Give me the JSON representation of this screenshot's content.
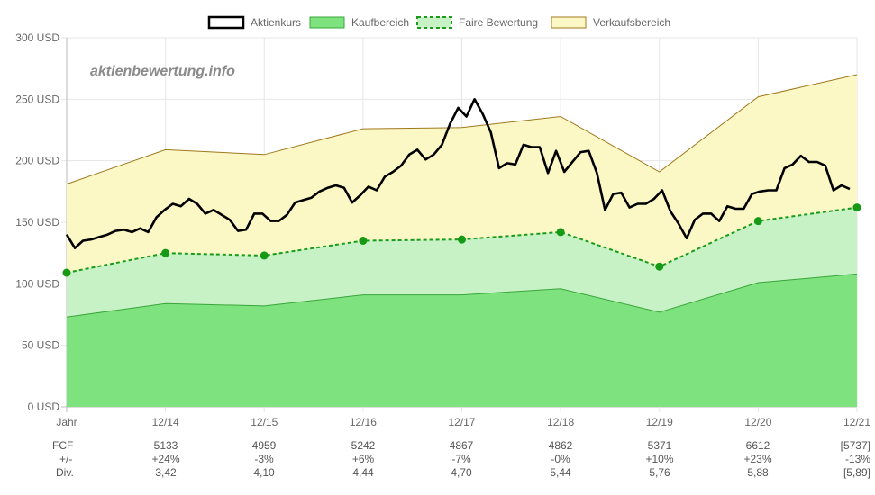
{
  "watermark": "aktienbewertung.info",
  "chart_data": {
    "type": "line",
    "legend_position": "top",
    "legend": [
      {
        "name": "Aktienkurs",
        "style": "line",
        "color": "#000000"
      },
      {
        "name": "Kaufbereich",
        "style": "area",
        "color": "#7ee27e",
        "border": "#3aa63a"
      },
      {
        "name": "Faire Bewertung",
        "style": "dashed",
        "color": "#c6f2c6",
        "border": "#1a9b1a"
      },
      {
        "name": "Verkaufsbereich",
        "style": "area",
        "color": "#fbf8c6",
        "border": "#a0781e"
      }
    ],
    "y_axis": {
      "min": 0,
      "max": 300,
      "step": 50,
      "unit": "USD",
      "tick_labels": [
        "0 USD",
        "50 USD",
        "100 USD",
        "150 USD",
        "200 USD",
        "250 USD",
        "300 USD"
      ]
    },
    "x_labels": [
      "Jahr",
      "12/14",
      "12/15",
      "12/16",
      "12/17",
      "12/18",
      "12/19",
      "12/20",
      "12/21"
    ],
    "grid": true,
    "fair_value": [
      109,
      125,
      123,
      135,
      136,
      142,
      114,
      151,
      162
    ],
    "buy_range_upper": [
      73,
      84,
      82,
      91,
      91,
      96,
      77,
      101,
      108
    ],
    "sell_range_upper": [
      181,
      209,
      205,
      226,
      227,
      236,
      191,
      252,
      270
    ],
    "stock_price": [
      140,
      129,
      135,
      136,
      138,
      140,
      143,
      144,
      142,
      145,
      142,
      154,
      160,
      165,
      163,
      169,
      165,
      157,
      160,
      156,
      152,
      143,
      144,
      157,
      157,
      151,
      151,
      156,
      166,
      168,
      170,
      175,
      178,
      180,
      178,
      166,
      172,
      179,
      176,
      187,
      191,
      196,
      205,
      209,
      201,
      205,
      213,
      230,
      243,
      236,
      250,
      238,
      223,
      194,
      198,
      197,
      213,
      211,
      211,
      190,
      208,
      191,
      199,
      207,
      208,
      190,
      160,
      173,
      174,
      162,
      165,
      165,
      169,
      176,
      159,
      149,
      137,
      152,
      157,
      157,
      151,
      163,
      161,
      161,
      173,
      175,
      176,
      176,
      194,
      197,
      204,
      199,
      199,
      196,
      176,
      180,
      177
    ]
  },
  "table": {
    "rows": [
      {
        "label": "FCF",
        "values": [
          "5133",
          "4959",
          "5242",
          "4867",
          "4862",
          "5371",
          "6612",
          "[5737]"
        ]
      },
      {
        "label": "+/-",
        "values": [
          "+24%",
          "-3%",
          "+6%",
          "-7%",
          "-0%",
          "+10%",
          "+23%",
          "-13%"
        ]
      },
      {
        "label": "Div.",
        "values": [
          "3,42",
          "4,10",
          "4,44",
          "4,70",
          "5,44",
          "5,76",
          "5,88",
          "[5,89]"
        ]
      }
    ]
  }
}
